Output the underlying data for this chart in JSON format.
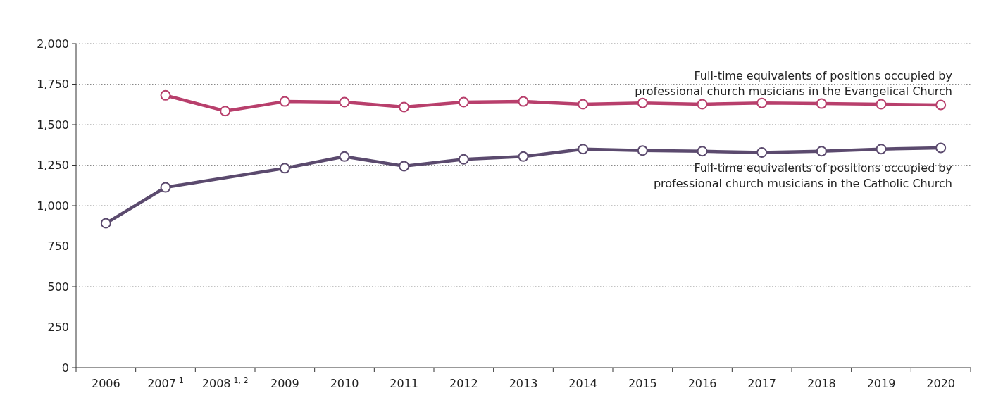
{
  "chart_data": {
    "type": "line",
    "categories": [
      "2006",
      "2007$^{1}$",
      "2008$^{1, 2}$",
      "2009",
      "2010",
      "2011",
      "2012",
      "2013",
      "2014",
      "2015",
      "2016",
      "2017",
      "2018",
      "2019",
      "2020"
    ],
    "series": [
      {
        "name": "Full-time equivalents of positions occupied by professional church musicians in the Evangelical Church",
        "color": "#b83f6c",
        "values": [
          null,
          1681,
          1584,
          1643,
          1639,
          1609,
          1639,
          1643,
          1626,
          1634,
          1626,
          1634,
          1630,
          1626,
          1622
        ]
      },
      {
        "name": "Full-time equivalents of positions occupied by professional church musicians in the Catholic Church",
        "color": "#5b4a6e",
        "values": [
          891,
          1113,
          null,
          1231,
          1303,
          1244,
          1286,
          1303,
          1349,
          1340,
          1336,
          1328,
          1336,
          1349,
          1357
        ]
      }
    ],
    "ylim": [
      0,
      2000
    ],
    "yticks": [
      {
        "value": 0,
        "label": "0"
      },
      {
        "value": 250,
        "label": "250"
      },
      {
        "value": 500,
        "label": "500"
      },
      {
        "value": 750,
        "label": "750"
      },
      {
        "value": 1000,
        "label": "1,000"
      },
      {
        "value": 1250,
        "label": "1,250"
      },
      {
        "value": 1500,
        "label": "1,500"
      },
      {
        "value": 1750,
        "label": "1,750"
      },
      {
        "value": 2000,
        "label": "2,000"
      }
    ],
    "grid": "y",
    "marker": "circle",
    "line_style": "solid"
  }
}
